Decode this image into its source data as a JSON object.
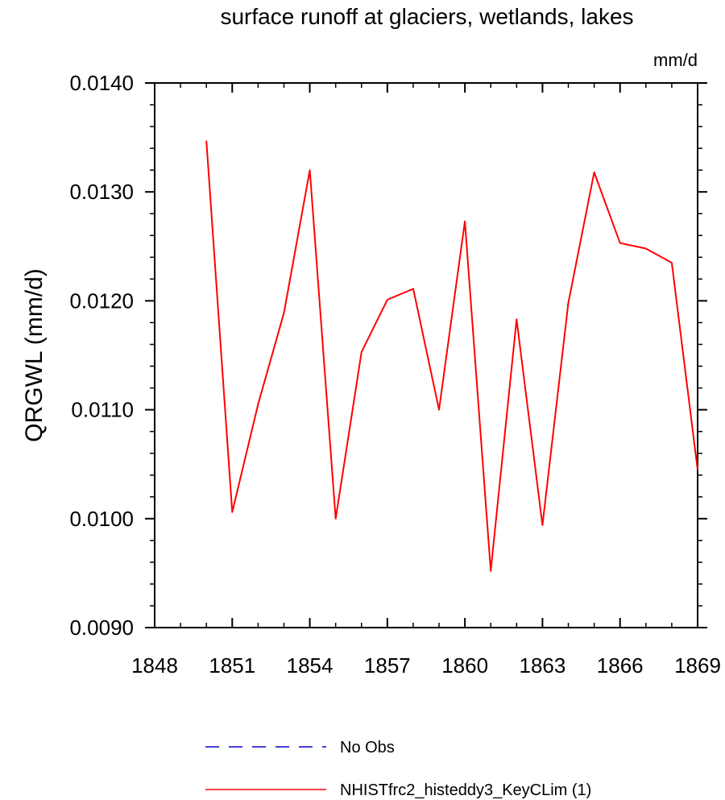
{
  "chart_data": {
    "type": "line",
    "title": "surface runoff at glaciers, wetlands, lakes",
    "units_label": "mm/d",
    "ylabel": "QRGWL  (mm/d)",
    "xlabel": "",
    "xlim": [
      1848,
      1869
    ],
    "ylim": [
      0.009,
      0.014
    ],
    "x_ticks": [
      1848,
      1851,
      1854,
      1857,
      1860,
      1863,
      1866,
      1869
    ],
    "x_tick_labels": [
      "1848",
      "1851",
      "1854",
      "1857",
      "1860",
      "1863",
      "1866",
      "1869"
    ],
    "y_ticks": [
      0.009,
      0.01,
      0.011,
      0.012,
      0.013,
      0.014
    ],
    "y_tick_labels": [
      "0.0090",
      "0.0100",
      "0.0110",
      "0.0120",
      "0.0130",
      "0.0140"
    ],
    "grid": false,
    "legend_position": "bottom",
    "series": [
      {
        "name": "No Obs",
        "color": "#0000cc",
        "style": "dashed",
        "x": [],
        "y": []
      },
      {
        "name": "NHISTfrc2_histeddy3_KeyCLim (1)",
        "color": "#ff0000",
        "style": "solid",
        "x": [
          1850,
          1851,
          1852,
          1853,
          1854,
          1855,
          1856,
          1857,
          1858,
          1859,
          1860,
          1861,
          1862,
          1863,
          1864,
          1865,
          1866,
          1867,
          1868,
          1869
        ],
        "y": [
          0.01347,
          0.01006,
          0.01105,
          0.01189,
          0.0132,
          0.01,
          0.01153,
          0.01201,
          0.01211,
          0.011,
          0.01273,
          0.00952,
          0.01183,
          0.00994,
          0.01198,
          0.01318,
          0.01253,
          0.01248,
          0.01235,
          0.01045
        ]
      }
    ]
  }
}
